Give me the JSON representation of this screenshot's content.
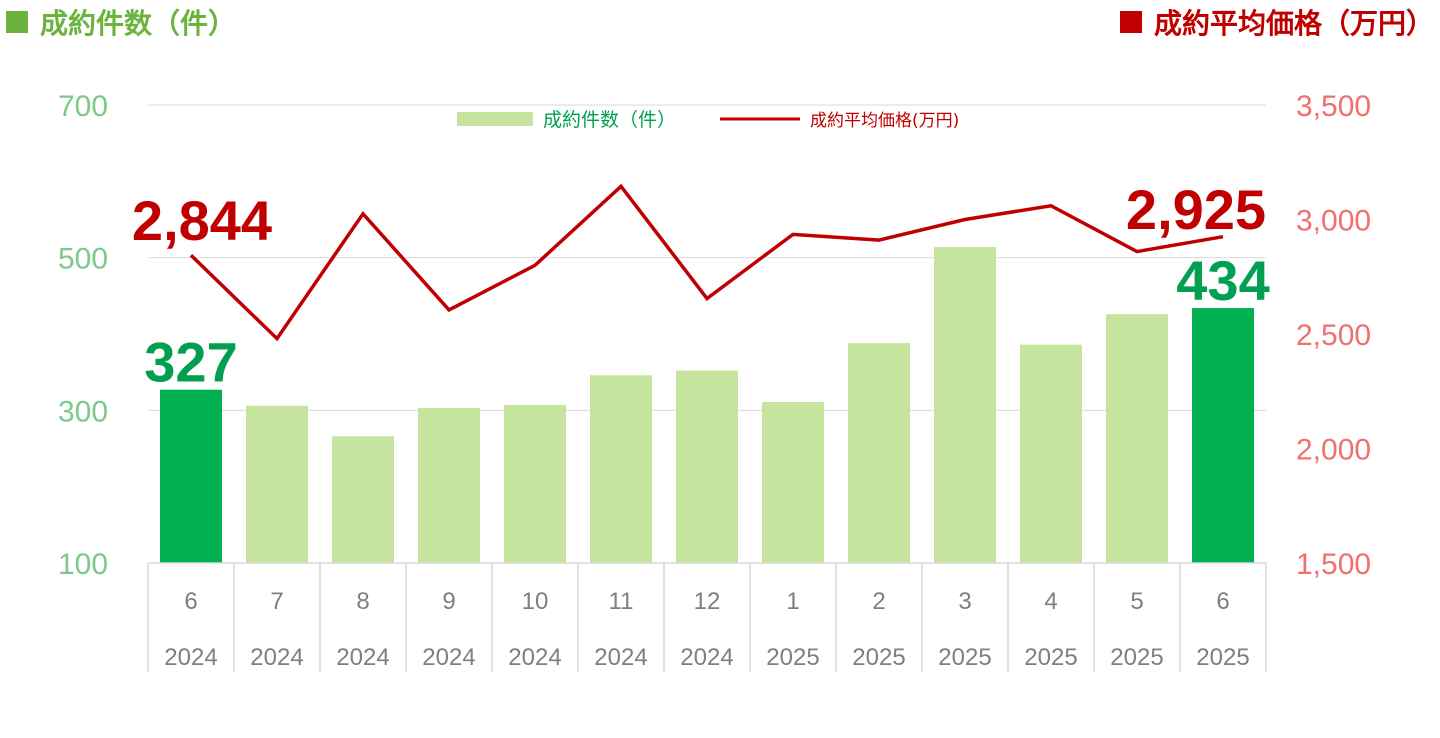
{
  "header": {
    "left_title": "成約件数（件）",
    "right_title": "成約平均価格（万円）"
  },
  "colors": {
    "bar_light": "#C5E59F",
    "bar_highlight": "#00B050",
    "line": "#C00000",
    "left_header": "#6CB33E",
    "right_header": "#C00000",
    "left_axis": "#7CC98A",
    "right_axis": "#F07070",
    "label_green": "#00A050",
    "label_red": "#C00000",
    "legend_text": "#00A050"
  },
  "chart_data": {
    "type": "bar",
    "categories": [
      {
        "month": "6",
        "year": "2024"
      },
      {
        "month": "7",
        "year": "2024"
      },
      {
        "month": "8",
        "year": "2024"
      },
      {
        "month": "9",
        "year": "2024"
      },
      {
        "month": "10",
        "year": "2024"
      },
      {
        "month": "11",
        "year": "2024"
      },
      {
        "month": "12",
        "year": "2024"
      },
      {
        "month": "1",
        "year": "2025"
      },
      {
        "month": "2",
        "year": "2025"
      },
      {
        "month": "3",
        "year": "2025"
      },
      {
        "month": "4",
        "year": "2025"
      },
      {
        "month": "5",
        "year": "2025"
      },
      {
        "month": "6",
        "year": "2025"
      }
    ],
    "series": [
      {
        "name": "成約件数（件）",
        "type": "bar",
        "axis": "left",
        "values": [
          327,
          306,
          266,
          303,
          307,
          346,
          352,
          311,
          388,
          514,
          386,
          426,
          434
        ],
        "highlight": [
          true,
          false,
          false,
          false,
          false,
          false,
          false,
          false,
          false,
          false,
          false,
          false,
          true
        ]
      },
      {
        "name": "成約平均価格(万円)",
        "type": "line",
        "axis": "right",
        "values": [
          2844,
          2480,
          3025,
          2605,
          2800,
          3145,
          2655,
          2935,
          2910,
          3000,
          3060,
          2860,
          2925
        ]
      }
    ],
    "left_axis": {
      "ylim": [
        100,
        700
      ],
      "ticks": [
        "100",
        "300",
        "500",
        "700"
      ]
    },
    "right_axis": {
      "ylim": [
        1500,
        3500
      ],
      "ticks": [
        "1,500",
        "2,000",
        "2,500",
        "3,000",
        "3,500"
      ]
    },
    "grid": true,
    "legend": "top-center",
    "annotations": {
      "first_bar": "327",
      "last_bar": "434",
      "first_line": "2,844",
      "last_line": "2,925"
    }
  }
}
